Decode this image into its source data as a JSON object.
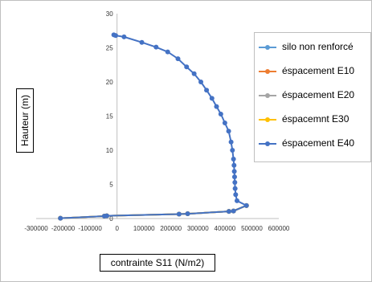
{
  "chart_data": {
    "type": "scatter",
    "title": "",
    "xlabel": "contrainte S11 (N/m2)",
    "ylabel": "Hauteur (m)",
    "xlim": [
      -300000,
      600000
    ],
    "ylim": [
      0,
      30
    ],
    "x_ticks": [
      "-300000",
      "-200000",
      "-100000",
      "0",
      "100000",
      "200000",
      "300000",
      "400000",
      "500000",
      "600000"
    ],
    "y_ticks": [
      "0",
      "5",
      "10",
      "15",
      "20",
      "25",
      "30"
    ],
    "grid": false,
    "legend_position": "right",
    "series": [
      {
        "name": "silo non renforcé",
        "color": "#5b9bd5",
        "x": [
          -210000,
          -47000,
          -38000,
          230000,
          262000,
          415000,
          432000,
          480000
        ],
        "y": [
          0.05,
          0.35,
          0.4,
          0.65,
          0.7,
          1.05,
          1.1,
          1.9
        ]
      },
      {
        "name": "éspacement E10",
        "color": "#ed7d31",
        "x": [
          -210000,
          -47000,
          -38000,
          230000,
          262000,
          415000,
          432000,
          480000
        ],
        "y": [
          0.05,
          0.35,
          0.4,
          0.65,
          0.7,
          1.05,
          1.1,
          1.9
        ]
      },
      {
        "name": "éspacement E20",
        "color": "#a5a5a5",
        "x": [
          -210000,
          -47000,
          -38000,
          230000,
          262000,
          415000,
          432000,
          480000
        ],
        "y": [
          0.05,
          0.35,
          0.4,
          0.65,
          0.7,
          1.05,
          1.1,
          1.9
        ]
      },
      {
        "name": "éspacemnt E30",
        "color": "#ffc000",
        "x": [
          -210000,
          -47000,
          -38000,
          230000,
          262000,
          415000,
          432000,
          480000
        ],
        "y": [
          0.05,
          0.35,
          0.4,
          0.65,
          0.7,
          1.05,
          1.1,
          1.9
        ]
      },
      {
        "name": "éspacement E40",
        "color": "#4472c4",
        "x": [
          -210000,
          -47000,
          -38000,
          230000,
          262000,
          415000,
          432000,
          480000,
          445000,
          440000,
          438000,
          437000,
          436000,
          435000,
          434000,
          432000,
          428000,
          423000,
          414000,
          400000,
          385000,
          369000,
          352000,
          332000,
          311000,
          286000,
          258000,
          226000,
          188000,
          145000,
          92000,
          26000,
          -5000,
          -12000
        ],
        "y": [
          0.05,
          0.35,
          0.4,
          0.65,
          0.7,
          1.05,
          1.1,
          1.9,
          2.6,
          3.5,
          4.4,
          5.3,
          6.1,
          6.9,
          7.8,
          8.7,
          10.0,
          11.2,
          12.8,
          14.0,
          15.3,
          16.4,
          17.6,
          18.8,
          20.0,
          21.2,
          22.2,
          23.4,
          24.4,
          25.1,
          25.8,
          26.6,
          26.8,
          26.9
        ]
      }
    ]
  }
}
